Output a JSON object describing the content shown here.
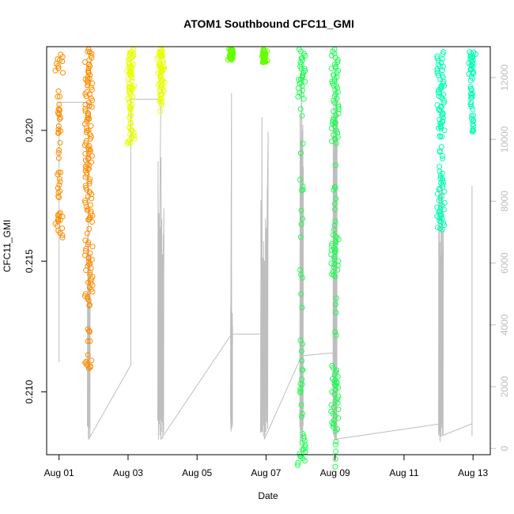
{
  "chart_data": {
    "type": "scatter",
    "title": "ATOM1 Southbound CFC11_GMI",
    "xlabel": "Date",
    "ylabel": "CFC11_GMI",
    "x_ticks": [
      "Aug 01",
      "Aug 03",
      "Aug 05",
      "Aug 07",
      "Aug 09",
      "Aug 11",
      "Aug 13"
    ],
    "x_tick_days": [
      1,
      3,
      5,
      7,
      9,
      11,
      13
    ],
    "xlim_days": [
      0.64,
      13.5
    ],
    "y_ticks": [
      "0.210",
      "0.215",
      "0.220"
    ],
    "y_tick_values": [
      0.21,
      0.215,
      0.22
    ],
    "ylim": [
      0.2076,
      0.2232
    ],
    "y2_ticks": [
      "0",
      "2000",
      "4000",
      "6000",
      "8000",
      "10000",
      "12000"
    ],
    "y2_tick_values": [
      0,
      2000,
      4000,
      6000,
      8000,
      10000,
      12000
    ],
    "y2lim": [
      -200,
      13000
    ],
    "grid": false,
    "series": [
      {
        "color": "#ff8c00",
        "flights": [
          {
            "day": 1.0,
            "min": 0.2159,
            "max": 0.2229,
            "dense": [
              [
                0.2159,
                0.2167
              ],
              [
                0.2222,
                0.2229
              ]
            ]
          },
          {
            "day": 1.86,
            "min": 0.2109,
            "max": 0.2231,
            "dense": [
              [
                0.2109,
                0.2112
              ],
              [
                0.2135,
                0.2158
              ],
              [
                0.2165,
                0.2231
              ]
            ]
          }
        ]
      },
      {
        "color": "#e6ff00",
        "flights": [
          {
            "day": 3.08,
            "min": 0.2195,
            "max": 0.2231,
            "dense": [
              [
                0.2195,
                0.2199
              ],
              [
                0.2212,
                0.2231
              ]
            ]
          },
          {
            "day": 3.95,
            "min": 0.2207,
            "max": 0.2231,
            "dense": [
              [
                0.2215,
                0.2231
              ]
            ]
          }
        ]
      },
      {
        "color": "#66ff00",
        "flights": [
          {
            "day": 6.0,
            "min": 0.2227,
            "max": 0.2231,
            "dense": [
              [
                0.2227,
                0.2231
              ]
            ]
          },
          {
            "day": 6.95,
            "min": 0.2226,
            "max": 0.2231,
            "dense": [
              [
                0.2226,
                0.2231
              ]
            ]
          }
        ]
      },
      {
        "color": "#1aff4d",
        "flights": [
          {
            "day": 8.03,
            "min": 0.2072,
            "max": 0.2231,
            "dense": [
              [
                0.2072,
                0.2083
              ],
              [
                0.2212,
                0.2231
              ]
            ]
          },
          {
            "day": 9.0,
            "min": 0.207,
            "max": 0.2231,
            "dense": [
              [
                0.2085,
                0.211
              ],
              [
                0.2145,
                0.216
              ],
              [
                0.2195,
                0.2231
              ]
            ]
          }
        ]
      },
      {
        "color": "#00ffb0",
        "flights": [
          {
            "day": 12.07,
            "min": 0.2162,
            "max": 0.223,
            "dense": [
              [
                0.2162,
                0.218
              ],
              [
                0.22,
                0.223
              ]
            ]
          },
          {
            "day": 12.97,
            "min": 0.2199,
            "max": 0.223,
            "dense": [
              [
                0.2219,
                0.223
              ]
            ]
          }
        ]
      }
    ],
    "altitude_color": "#bebebe"
  }
}
